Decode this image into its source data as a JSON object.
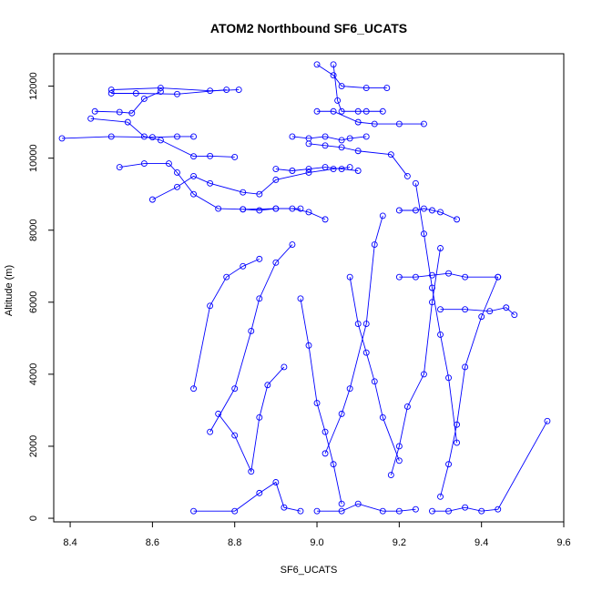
{
  "chart_data": {
    "type": "scatter",
    "title": "ATOM2 Northbound SF6_UCATS",
    "xlabel": "SF6_UCATS",
    "ylabel": "Altitude (m)",
    "xlim": [
      8.36,
      9.6
    ],
    "ylim": [
      -100,
      12900
    ],
    "xticks": [
      "8.4",
      "8.6",
      "8.8",
      "9.0",
      "9.2",
      "9.4",
      "9.6"
    ],
    "yticks": [
      "0",
      "2000",
      "4000",
      "6000",
      "8000",
      "10000",
      "12000"
    ],
    "series_color": "#0000ff",
    "grid": false,
    "series": [
      {
        "values": [
          [
            8.5,
            11900
          ],
          [
            8.62,
            11950
          ],
          [
            8.74,
            11870
          ],
          [
            8.81,
            11900
          ]
        ]
      },
      {
        "values": [
          [
            8.5,
            11800
          ],
          [
            8.56,
            11800
          ],
          [
            8.66,
            11780
          ],
          [
            8.78,
            11900
          ]
        ]
      },
      {
        "values": [
          [
            8.38,
            10550
          ],
          [
            8.5,
            10600
          ],
          [
            8.6,
            10580
          ],
          [
            8.66,
            10600
          ],
          [
            8.7,
            10600
          ]
        ]
      },
      {
        "values": [
          [
            8.46,
            11300
          ],
          [
            8.52,
            11280
          ],
          [
            8.55,
            11250
          ],
          [
            8.58,
            11650
          ],
          [
            8.62,
            11850
          ]
        ]
      },
      {
        "values": [
          [
            8.45,
            11100
          ],
          [
            8.54,
            11000
          ],
          [
            8.58,
            10600
          ],
          [
            8.62,
            10500
          ],
          [
            8.7,
            10050
          ],
          [
            8.74,
            10060
          ],
          [
            8.8,
            10030
          ]
        ]
      },
      {
        "values": [
          [
            8.52,
            9750
          ],
          [
            8.58,
            9850
          ],
          [
            8.64,
            9850
          ],
          [
            8.66,
            9600
          ],
          [
            8.7,
            9000
          ],
          [
            8.76,
            8600
          ],
          [
            8.82,
            8580
          ],
          [
            8.9,
            8600
          ],
          [
            8.96,
            8600
          ]
        ]
      },
      {
        "values": [
          [
            8.6,
            8850
          ],
          [
            8.66,
            9200
          ],
          [
            8.7,
            9500
          ],
          [
            8.74,
            9300
          ],
          [
            8.82,
            9050
          ],
          [
            8.86,
            9000
          ],
          [
            8.9,
            9400
          ],
          [
            8.98,
            9600
          ],
          [
            9.04,
            9700
          ],
          [
            9.08,
            9750
          ]
        ]
      },
      {
        "values": [
          [
            9.0,
            12600
          ],
          [
            9.04,
            12300
          ],
          [
            9.06,
            12000
          ],
          [
            9.12,
            11950
          ],
          [
            9.17,
            11950
          ]
        ]
      },
      {
        "values": [
          [
            9.04,
            12600
          ],
          [
            9.05,
            11600
          ],
          [
            9.06,
            11300
          ],
          [
            9.1,
            11300
          ],
          [
            9.12,
            11300
          ],
          [
            9.16,
            11300
          ]
        ]
      },
      {
        "values": [
          [
            9.0,
            11300
          ],
          [
            9.04,
            11300
          ],
          [
            9.1,
            11000
          ],
          [
            9.14,
            10950
          ],
          [
            9.2,
            10950
          ],
          [
            9.26,
            10950
          ]
        ]
      },
      {
        "values": [
          [
            8.94,
            10600
          ],
          [
            8.98,
            10550
          ],
          [
            9.02,
            10600
          ],
          [
            9.06,
            10500
          ],
          [
            9.08,
            10550
          ],
          [
            9.12,
            10600
          ]
        ]
      },
      {
        "values": [
          [
            8.98,
            10400
          ],
          [
            9.02,
            10350
          ],
          [
            9.06,
            10300
          ],
          [
            9.1,
            10200
          ],
          [
            9.18,
            10100
          ],
          [
            9.22,
            9500
          ]
        ]
      },
      {
        "values": [
          [
            8.9,
            9700
          ],
          [
            8.94,
            9650
          ],
          [
            8.98,
            9700
          ],
          [
            9.02,
            9750
          ],
          [
            9.06,
            9700
          ],
          [
            9.1,
            9650
          ]
        ]
      },
      {
        "values": [
          [
            8.82,
            8580
          ],
          [
            8.86,
            8550
          ],
          [
            8.9,
            8600
          ],
          [
            8.94,
            8600
          ],
          [
            8.98,
            8500
          ],
          [
            9.02,
            8300
          ]
        ]
      },
      {
        "values": [
          [
            9.2,
            8550
          ],
          [
            9.24,
            8550
          ],
          [
            9.26,
            8600
          ],
          [
            9.28,
            8550
          ],
          [
            9.3,
            8500
          ],
          [
            9.34,
            8300
          ]
        ]
      },
      {
        "values": [
          [
            9.2,
            6700
          ],
          [
            9.24,
            6700
          ],
          [
            9.28,
            6750
          ],
          [
            9.32,
            6800
          ],
          [
            9.36,
            6700
          ],
          [
            9.44,
            6700
          ]
        ]
      },
      {
        "values": [
          [
            9.3,
            5800
          ],
          [
            9.36,
            5800
          ],
          [
            9.42,
            5750
          ],
          [
            9.46,
            5850
          ],
          [
            9.48,
            5650
          ]
        ]
      },
      {
        "values": [
          [
            8.7,
            200
          ],
          [
            8.8,
            200
          ],
          [
            8.86,
            700
          ],
          [
            8.9,
            1000
          ],
          [
            8.92,
            300
          ],
          [
            8.96,
            200
          ]
        ]
      },
      {
        "values": [
          [
            9.0,
            200
          ],
          [
            9.06,
            200
          ],
          [
            9.1,
            400
          ],
          [
            9.16,
            200
          ],
          [
            9.2,
            200
          ],
          [
            9.24,
            250
          ]
        ]
      },
      {
        "values": [
          [
            9.28,
            200
          ],
          [
            9.32,
            200
          ],
          [
            9.36,
            300
          ],
          [
            9.4,
            200
          ],
          [
            9.44,
            250
          ],
          [
            9.56,
            2700
          ]
        ]
      },
      {
        "values": [
          [
            8.7,
            3600
          ],
          [
            8.74,
            5900
          ],
          [
            8.78,
            6700
          ],
          [
            8.82,
            7000
          ],
          [
            8.86,
            7200
          ]
        ]
      },
      {
        "values": [
          [
            8.76,
            2900
          ],
          [
            8.8,
            2300
          ],
          [
            8.84,
            1300
          ],
          [
            8.86,
            2800
          ],
          [
            8.88,
            3700
          ],
          [
            8.92,
            4200
          ]
        ]
      },
      {
        "values": [
          [
            8.74,
            2400
          ],
          [
            8.8,
            3600
          ],
          [
            8.84,
            5200
          ],
          [
            8.86,
            6100
          ],
          [
            8.9,
            7100
          ],
          [
            8.94,
            7600
          ]
        ]
      },
      {
        "values": [
          [
            9.02,
            1800
          ],
          [
            9.06,
            2900
          ],
          [
            9.08,
            3600
          ],
          [
            9.12,
            5400
          ],
          [
            9.14,
            7600
          ],
          [
            9.16,
            8400
          ]
        ]
      },
      {
        "values": [
          [
            9.18,
            1200
          ],
          [
            9.2,
            2000
          ],
          [
            9.22,
            3100
          ],
          [
            9.26,
            4000
          ],
          [
            9.28,
            6000
          ],
          [
            9.3,
            7500
          ]
        ]
      },
      {
        "values": [
          [
            9.3,
            600
          ],
          [
            9.32,
            1500
          ],
          [
            9.34,
            2600
          ],
          [
            9.36,
            4200
          ],
          [
            9.4,
            5600
          ],
          [
            9.44,
            6700
          ]
        ]
      },
      {
        "values": [
          [
            9.08,
            6700
          ],
          [
            9.1,
            5400
          ],
          [
            9.12,
            4600
          ],
          [
            9.14,
            3800
          ],
          [
            9.16,
            2800
          ],
          [
            9.2,
            1600
          ]
        ]
      },
      {
        "values": [
          [
            8.96,
            6100
          ],
          [
            8.98,
            4800
          ],
          [
            9.0,
            3200
          ],
          [
            9.02,
            2400
          ],
          [
            9.04,
            1500
          ],
          [
            9.06,
            400
          ]
        ]
      },
      {
        "values": [
          [
            9.24,
            9300
          ],
          [
            9.26,
            7900
          ],
          [
            9.28,
            6400
          ],
          [
            9.3,
            5100
          ],
          [
            9.32,
            3900
          ],
          [
            9.34,
            2100
          ]
        ]
      }
    ]
  }
}
